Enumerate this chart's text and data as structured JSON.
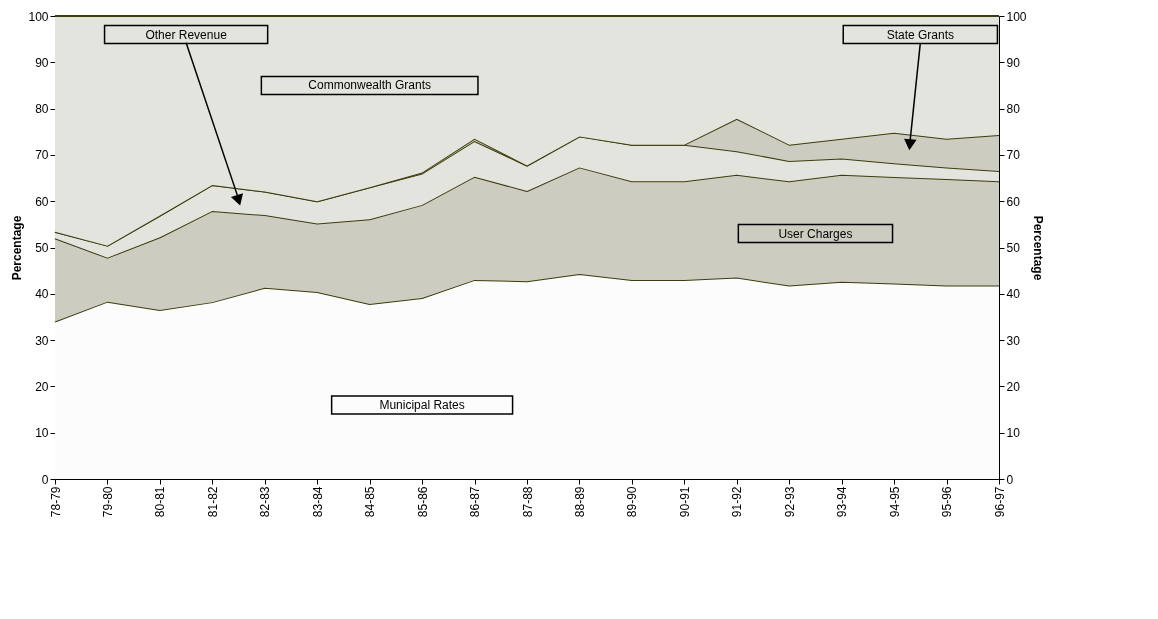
{
  "chart_data": {
    "type": "area",
    "stacked": true,
    "ylabel": "Percentage",
    "y2label": "Percentage",
    "categories": [
      "78-79",
      "79-80",
      "80-81",
      "81-82",
      "82-83",
      "83-84",
      "84-85",
      "85-86",
      "86-87",
      "87-88",
      "88-89",
      "89-90",
      "90-91",
      "91-92",
      "92-93",
      "93-94",
      "94-95",
      "95-96",
      "96-97"
    ],
    "series": [
      {
        "name": "Municipal Rates",
        "color": "#fcfcfc",
        "values": [
          34,
          38.3,
          36.5,
          38.2,
          41.3,
          40.4,
          37.8,
          39.1,
          43,
          42.7,
          44.3,
          43,
          43,
          43.5,
          41.8,
          42.6,
          42.2,
          41.8,
          41.8
        ]
      },
      {
        "name": "User Charges",
        "color": "#cccdc0",
        "values": [
          18,
          9.5,
          15.7,
          19.7,
          15.7,
          14.8,
          18.3,
          20.1,
          22.3,
          19.5,
          23,
          21.3,
          21.3,
          22.2,
          22.5,
          23.1,
          23,
          23,
          22.5
        ]
      },
      {
        "name": "Other Revenue",
        "color": "#e3e4de",
        "values": [
          1.4,
          2.6,
          4.7,
          5.6,
          5.1,
          4.8,
          6.9,
          6.8,
          7.7,
          5.5,
          6.7,
          7.9,
          7.9,
          5.1,
          4.4,
          3.5,
          3.0,
          2.5,
          2.2
        ]
      },
      {
        "name": "State Grants",
        "color": "#cccdc0",
        "values": [
          0,
          0,
          0,
          0,
          0,
          0,
          0,
          0.2,
          0.5,
          0,
          0,
          0,
          0,
          7,
          3.5,
          4.3,
          6.6,
          6.2,
          7.8
        ]
      },
      {
        "name": "Commonwealth Grants",
        "color": "#e3e4de",
        "values": [
          46.6,
          49.6,
          43.1,
          36.5,
          37.9,
          40,
          37,
          33.8,
          26.5,
          32.3,
          26,
          27.8,
          27.8,
          22.2,
          27.8,
          26.5,
          25.2,
          26.5,
          25.7
        ]
      }
    ],
    "ylim": [
      0,
      100
    ],
    "yticks": [
      0,
      10,
      20,
      30,
      40,
      50,
      60,
      70,
      80,
      90,
      100
    ],
    "y2lim": [
      0,
      100
    ],
    "y2ticks": [
      0,
      10,
      20,
      30,
      40,
      50,
      60,
      70,
      80,
      90,
      100
    ],
    "legend": false
  }
}
